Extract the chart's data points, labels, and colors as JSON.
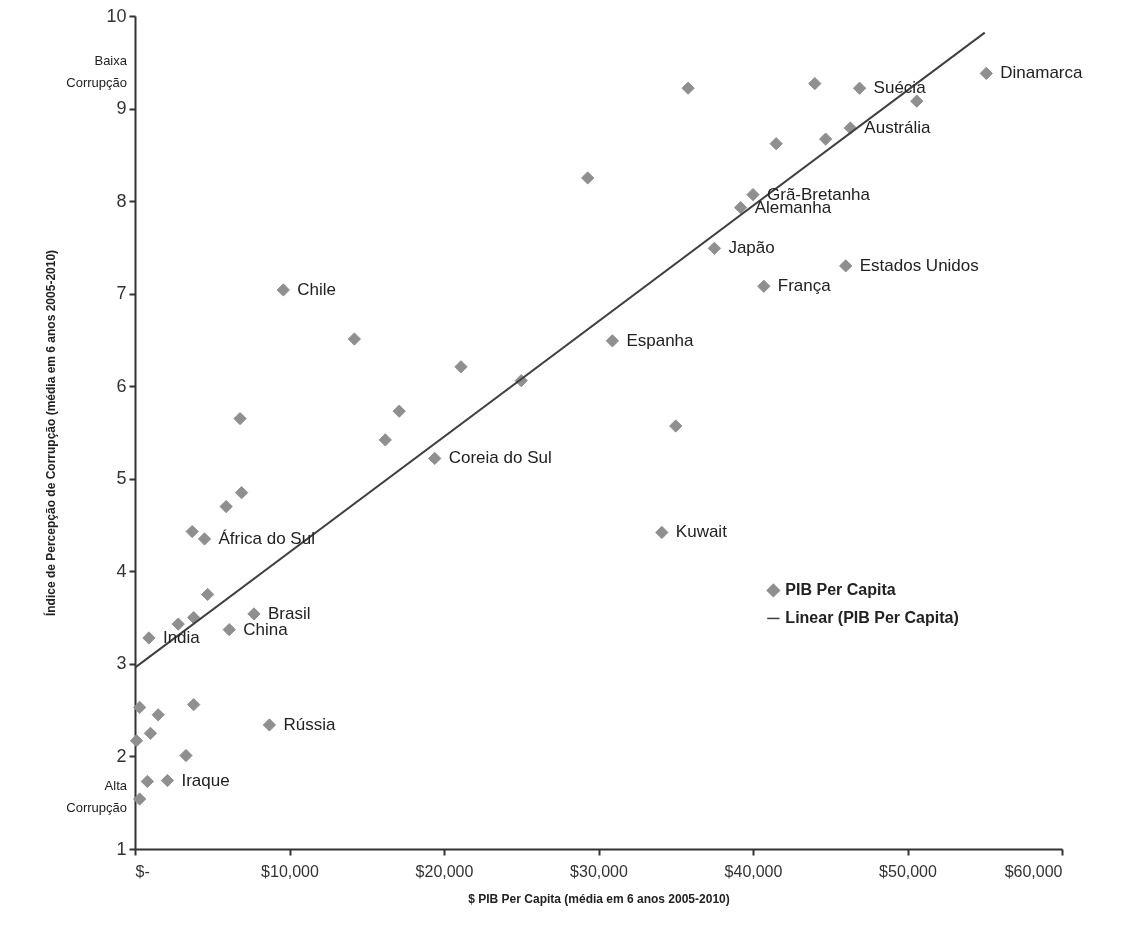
{
  "chart_data": {
    "type": "scatter",
    "xlabel": "$ PIB Per Capita (média em 6 anos 2005-2010)",
    "ylabel": "Índice de Percepção de Corrupção (média em 6 anos 2005-2010)",
    "xlim": [
      0,
      60000
    ],
    "ylim": [
      1,
      10
    ],
    "xticks": [
      {
        "value": 0,
        "label": "$-"
      },
      {
        "value": 10000,
        "label": "$10,000"
      },
      {
        "value": 20000,
        "label": "$20,000"
      },
      {
        "value": 30000,
        "label": "$30,000"
      },
      {
        "value": 40000,
        "label": "$40,000"
      },
      {
        "value": 50000,
        "label": "$50,000"
      },
      {
        "value": 60000,
        "label": "$60,000"
      }
    ],
    "yticks": [
      1,
      2,
      3,
      4,
      5,
      6,
      7,
      8,
      9,
      10
    ],
    "grid": false,
    "legend": "right",
    "marker": "diamond",
    "series": [
      {
        "name": "PIB Per Capita",
        "color": "#8f8f8f",
        "x": [
          9600,
          14200,
          6800,
          21100,
          17100,
          16200,
          25000,
          19400,
          6900,
          5900,
          3700,
          4500,
          4700,
          2800,
          3800,
          900,
          6100,
          7700,
          300,
          1500,
          3800,
          1000,
          100,
          3300,
          8700,
          800,
          2100,
          300,
          35800,
          44000,
          46900,
          50600,
          55100,
          46300,
          44700,
          41500,
          29300,
          40000,
          39200,
          37500,
          46000,
          40700,
          30900,
          35000,
          34100
        ],
        "values": [
          7.04,
          6.51,
          5.65,
          6.21,
          5.73,
          5.42,
          6.06,
          5.22,
          4.85,
          4.7,
          4.43,
          4.35,
          3.75,
          3.43,
          3.5,
          3.28,
          3.37,
          3.54,
          2.53,
          2.45,
          2.56,
          2.25,
          2.17,
          2.01,
          2.34,
          1.73,
          1.74,
          1.54,
          9.22,
          9.27,
          9.22,
          9.08,
          9.38,
          8.79,
          8.67,
          8.62,
          8.25,
          8.07,
          7.93,
          7.49,
          7.3,
          7.08,
          6.49,
          5.57,
          4.42
        ]
      },
      {
        "name": "Linear (PIB Per Capita)",
        "type": "line",
        "marker": "none",
        "color": "#404040",
        "x": [
          0,
          55000
        ],
        "values": [
          2.96,
          9.82
        ]
      }
    ],
    "annotations": [
      {
        "text": "Chile",
        "x": 9600,
        "y": 7.04
      },
      {
        "text": "Coreia do Sul",
        "x": 19400,
        "y": 5.22
      },
      {
        "text": "África do Sul",
        "x": 4500,
        "y": 4.35
      },
      {
        "text": "Brasil",
        "x": 7700,
        "y": 3.54
      },
      {
        "text": "China",
        "x": 6100,
        "y": 3.37
      },
      {
        "text": "India",
        "x": 900,
        "y": 3.28
      },
      {
        "text": "Rússia",
        "x": 8700,
        "y": 2.34
      },
      {
        "text": "Iraque",
        "x": 2100,
        "y": 1.74
      },
      {
        "text": "Suécia",
        "x": 46900,
        "y": 9.22
      },
      {
        "text": "Dinamarca",
        "x": 55100,
        "y": 9.38
      },
      {
        "text": "Austrália",
        "x": 46300,
        "y": 8.79
      },
      {
        "text": "Grã-Bretanha",
        "x": 40000,
        "y": 8.07
      },
      {
        "text": "Alemanha",
        "x": 39200,
        "y": 7.93
      },
      {
        "text": "Japão",
        "x": 37500,
        "y": 7.49
      },
      {
        "text": "Estados Unidos",
        "x": 46000,
        "y": 7.3
      },
      {
        "text": "França",
        "x": 40700,
        "y": 7.08
      },
      {
        "text": "Espanha",
        "x": 30900,
        "y": 6.49
      },
      {
        "text": "Kuwait",
        "x": 34100,
        "y": 4.42
      },
      "Baixa Corrupção",
      "Alta Corrupção"
    ]
  }
}
